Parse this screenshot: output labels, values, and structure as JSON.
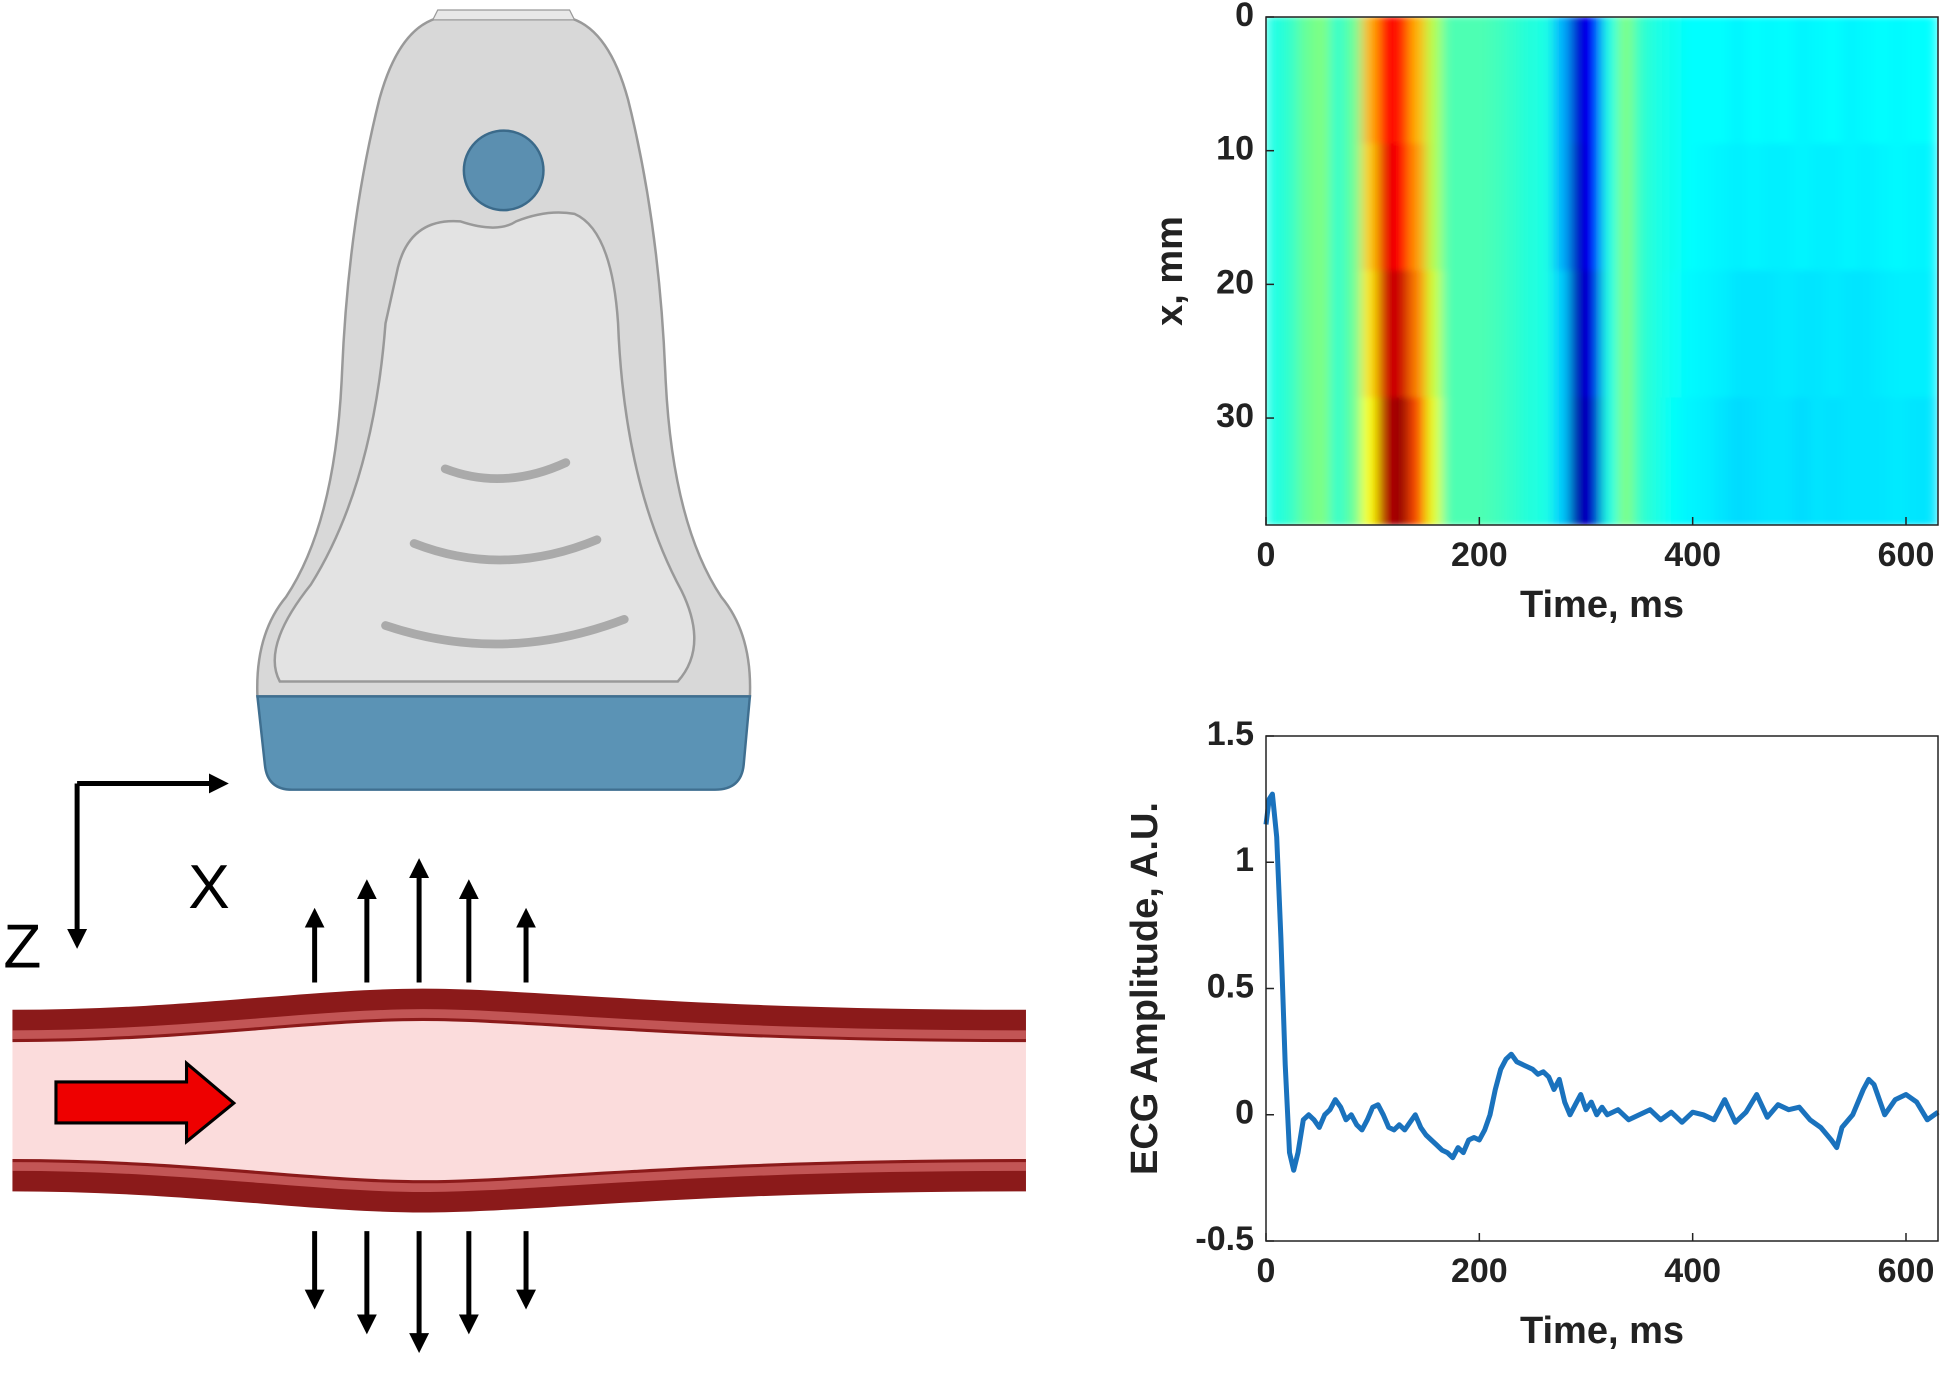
{
  "diagram": {
    "axis_labels": [
      "X",
      "Z"
    ]
  },
  "chart_data": [
    {
      "type": "heatmap",
      "xlabel": "Time, ms",
      "ylabel": "x, mm",
      "xlim": [
        0,
        630
      ],
      "xticks": [
        0,
        200,
        400,
        600
      ],
      "ylim": [
        38,
        0
      ],
      "yticks": [
        0,
        10,
        20,
        30
      ],
      "colormap": "jet",
      "clim": [
        -1,
        1
      ],
      "xbins": [
        0,
        15,
        30,
        45,
        60,
        75,
        90,
        105,
        120,
        135,
        150,
        165,
        180,
        195,
        210,
        225,
        240,
        255,
        270,
        285,
        300,
        315,
        330,
        345,
        360,
        375,
        390,
        405,
        420,
        435,
        450,
        465,
        480,
        495,
        510,
        525,
        540,
        555,
        570,
        585,
        600,
        615,
        630
      ],
      "ybins": [
        0,
        9.5,
        19,
        28.5,
        38
      ],
      "z": [
        [
          -0.2,
          -0.15,
          -0.05,
          0,
          -0.15,
          -0.05,
          0.4,
          0.75,
          0.7,
          0.4,
          0.1,
          -0.1,
          -0.1,
          -0.1,
          -0.12,
          -0.15,
          -0.18,
          -0.2,
          -0.4,
          -0.85,
          -0.75,
          -0.2,
          0,
          -0.15,
          -0.2,
          -0.22,
          -0.25,
          -0.25,
          -0.25,
          -0.27,
          -0.25,
          -0.26,
          -0.25,
          -0.27,
          -0.26,
          -0.25,
          -0.27,
          -0.26,
          -0.25,
          -0.26,
          -0.25,
          -0.25
        ],
        [
          -0.2,
          -0.15,
          -0.05,
          0,
          -0.15,
          -0.05,
          0.35,
          0.8,
          0.75,
          0.45,
          0.1,
          -0.1,
          -0.1,
          -0.1,
          -0.12,
          -0.15,
          -0.18,
          -0.2,
          -0.4,
          -0.88,
          -0.75,
          -0.2,
          0,
          -0.15,
          -0.2,
          -0.22,
          -0.25,
          -0.26,
          -0.27,
          -0.28,
          -0.27,
          -0.28,
          -0.28,
          -0.27,
          -0.28,
          -0.28,
          -0.27,
          -0.28,
          -0.27,
          -0.26,
          -0.27,
          -0.27
        ],
        [
          -0.2,
          -0.15,
          -0.05,
          0,
          -0.15,
          -0.05,
          0.3,
          0.85,
          0.85,
          0.5,
          0.15,
          -0.1,
          -0.1,
          -0.1,
          -0.12,
          -0.15,
          -0.18,
          -0.2,
          -0.35,
          -0.9,
          -0.8,
          -0.2,
          0,
          -0.15,
          -0.2,
          -0.23,
          -0.26,
          -0.27,
          -0.28,
          -0.3,
          -0.3,
          -0.3,
          -0.29,
          -0.3,
          -0.3,
          -0.29,
          -0.3,
          -0.3,
          -0.29,
          -0.28,
          -0.28,
          -0.28
        ],
        [
          -0.2,
          -0.15,
          -0.05,
          0,
          -0.15,
          -0.05,
          0.25,
          0.9,
          0.95,
          0.6,
          0.2,
          -0.1,
          -0.1,
          -0.1,
          -0.12,
          -0.15,
          -0.18,
          -0.2,
          -0.35,
          -0.92,
          -0.85,
          -0.2,
          0,
          -0.15,
          -0.2,
          -0.24,
          -0.27,
          -0.28,
          -0.3,
          -0.32,
          -0.31,
          -0.3,
          -0.3,
          -0.32,
          -0.3,
          -0.31,
          -0.3,
          -0.3,
          -0.3,
          -0.29,
          -0.3,
          -0.3
        ]
      ]
    },
    {
      "type": "line",
      "xlabel": "Time, ms",
      "ylabel": "ECG Amplitude, A.U.",
      "xlim": [
        0,
        630
      ],
      "xticks": [
        0,
        200,
        400,
        600
      ],
      "ylim": [
        -0.5,
        1.5
      ],
      "yticks": [
        -0.5,
        0,
        0.5,
        1,
        1.5
      ],
      "color": "#1a72bd",
      "x": [
        0,
        3,
        6,
        10,
        14,
        18,
        22,
        26,
        30,
        35,
        40,
        45,
        50,
        55,
        60,
        65,
        70,
        75,
        80,
        85,
        90,
        95,
        100,
        105,
        110,
        115,
        120,
        125,
        130,
        135,
        140,
        145,
        150,
        155,
        160,
        165,
        170,
        175,
        180,
        185,
        190,
        195,
        200,
        205,
        210,
        215,
        220,
        225,
        230,
        235,
        240,
        245,
        250,
        255,
        260,
        265,
        270,
        275,
        280,
        285,
        290,
        295,
        300,
        305,
        310,
        315,
        320,
        330,
        340,
        350,
        360,
        370,
        380,
        390,
        400,
        410,
        420,
        430,
        440,
        450,
        460,
        470,
        480,
        490,
        500,
        510,
        520,
        530,
        535,
        540,
        550,
        560,
        565,
        570,
        580,
        590,
        600,
        610,
        620,
        630
      ],
      "values": [
        1.15,
        1.25,
        1.27,
        1.1,
        0.7,
        0.2,
        -0.15,
        -0.22,
        -0.15,
        -0.02,
        0,
        -0.02,
        -0.05,
        0,
        0.02,
        0.06,
        0.03,
        -0.02,
        0,
        -0.04,
        -0.06,
        -0.02,
        0.03,
        0.04,
        0,
        -0.05,
        -0.06,
        -0.04,
        -0.06,
        -0.03,
        0,
        -0.05,
        -0.08,
        -0.1,
        -0.12,
        -0.14,
        -0.15,
        -0.17,
        -0.13,
        -0.15,
        -0.1,
        -0.09,
        -0.1,
        -0.06,
        0,
        0.1,
        0.18,
        0.22,
        0.24,
        0.21,
        0.2,
        0.19,
        0.18,
        0.16,
        0.17,
        0.15,
        0.1,
        0.14,
        0.05,
        0,
        0.04,
        0.08,
        0.02,
        0.05,
        0,
        0.03,
        0,
        0.02,
        -0.02,
        0,
        0.02,
        -0.02,
        0.01,
        -0.03,
        0.01,
        0,
        -0.02,
        0.06,
        -0.03,
        0.01,
        0.08,
        -0.01,
        0.04,
        0.02,
        0.03,
        -0.02,
        -0.05,
        -0.1,
        -0.13,
        -0.05,
        0,
        0.1,
        0.14,
        0.12,
        0,
        0.06,
        0.08,
        0.05,
        -0.02,
        0.01
      ]
    }
  ]
}
